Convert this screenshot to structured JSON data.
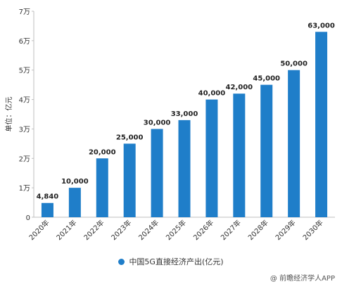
{
  "chart_data": {
    "type": "bar",
    "categories": [
      "2020年",
      "2021年",
      "2022年",
      "2023年",
      "2024年",
      "2025年",
      "2026年",
      "2027年",
      "2028年",
      "2029年",
      "2030年"
    ],
    "series": [
      {
        "name": "中国5G直接经济产出(亿元)",
        "values": [
          4840,
          10000,
          20000,
          25000,
          30000,
          33000,
          40000,
          42000,
          45000,
          50000,
          63000
        ],
        "labels": [
          "4,840",
          "10,000",
          "20,000",
          "25,000",
          "30,000",
          "33,000",
          "40,000",
          "42,000",
          "45,000",
          "50,000",
          "63,000"
        ],
        "color": "#1f7ec9"
      }
    ],
    "ylabel": "单位：亿元",
    "xlabel": "",
    "ylim": [
      0,
      70000
    ],
    "yticks": [
      0,
      10000,
      20000,
      30000,
      40000,
      50000,
      60000,
      70000
    ],
    "ytick_labels": [
      "0",
      "1万",
      "2万",
      "3万",
      "4万",
      "5万",
      "6万",
      "7万"
    ],
    "grid": false,
    "legend_position": "bottom"
  },
  "source": "@ 前瞻经济学人APP"
}
